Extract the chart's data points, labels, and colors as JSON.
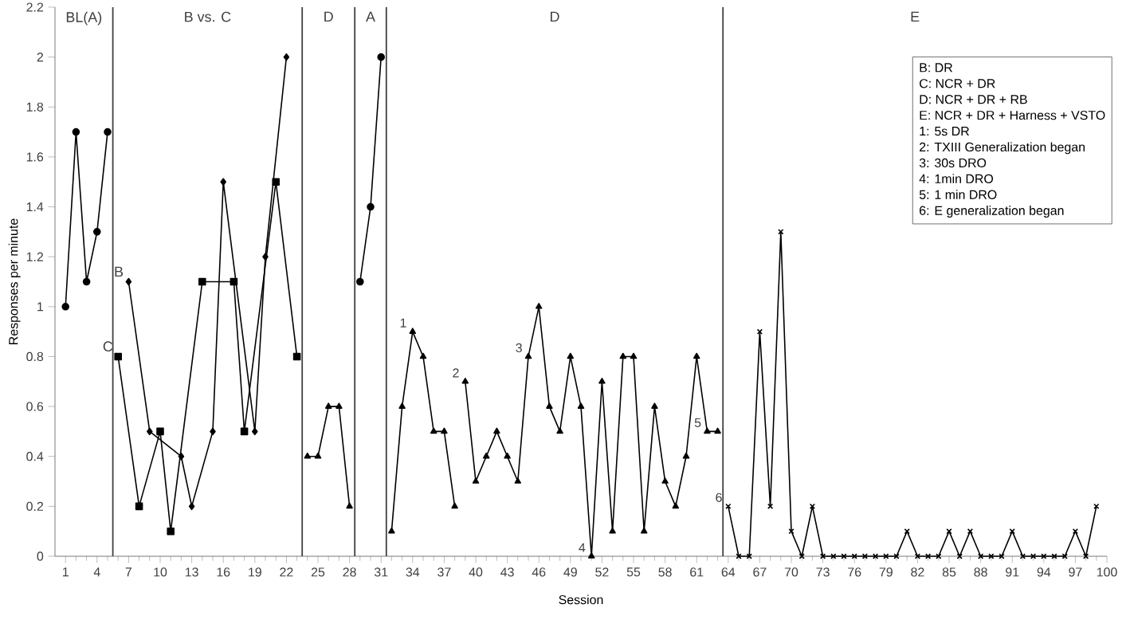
{
  "chart_data": {
    "type": "line",
    "xlabel": "Session",
    "ylabel": "Responses per minute",
    "xlim": [
      0,
      100
    ],
    "ylim": [
      0,
      2.2
    ],
    "xticks": [
      1,
      4,
      7,
      10,
      13,
      16,
      19,
      22,
      25,
      28,
      31,
      34,
      37,
      40,
      43,
      46,
      49,
      52,
      55,
      58,
      61,
      64,
      67,
      70,
      73,
      76,
      79,
      82,
      85,
      88,
      91,
      94,
      97,
      100
    ],
    "yticks": [
      0,
      0.2,
      0.4,
      0.6,
      0.8,
      1,
      1.2,
      1.4,
      1.6,
      1.8,
      2,
      2.2
    ],
    "grid": false,
    "series": [
      {
        "color": "#000000",
        "marker": "circle",
        "x": [
          1,
          2,
          3,
          4,
          5
        ],
        "values": [
          1.0,
          1.7,
          1.1,
          1.3,
          1.7
        ]
      },
      {
        "name": "B",
        "color": "#000000",
        "marker": "diamond",
        "x": [
          7,
          9,
          12,
          13,
          15,
          16,
          19,
          20,
          22
        ],
        "values": [
          1.1,
          0.5,
          0.4,
          0.2,
          0.5,
          1.5,
          0.5,
          1.2,
          2.0
        ]
      },
      {
        "name": "C",
        "color": "#000000",
        "marker": "square",
        "x": [
          6,
          8,
          10,
          11,
          14,
          17,
          18,
          21,
          23
        ],
        "values": [
          0.8,
          0.2,
          0.5,
          0.1,
          1.1,
          1.1,
          0.5,
          1.5,
          0.8
        ]
      },
      {
        "color": "#000000",
        "marker": "triangle",
        "x": [
          24,
          25,
          26,
          27,
          28
        ],
        "values": [
          0.4,
          0.4,
          0.6,
          0.6,
          0.2
        ]
      },
      {
        "color": "#000000",
        "marker": "circle",
        "x": [
          29,
          30,
          31
        ],
        "values": [
          1.1,
          1.4,
          2.0
        ]
      },
      {
        "color": "#000000",
        "marker": "triangle",
        "x": [
          32,
          33,
          34,
          35,
          36,
          37,
          38
        ],
        "values": [
          0.1,
          0.6,
          0.9,
          0.8,
          0.5,
          0.5,
          0.2
        ]
      },
      {
        "color": "#000000",
        "marker": "triangle",
        "x": [
          39,
          40,
          41,
          42,
          43,
          44,
          45,
          46,
          47,
          48,
          49,
          50,
          51,
          52,
          53,
          54,
          55,
          56,
          57,
          58,
          59,
          60,
          61,
          62,
          63
        ],
        "values": [
          0.7,
          0.3,
          0.4,
          0.5,
          0.4,
          0.3,
          0.8,
          1.0,
          0.6,
          0.5,
          0.8,
          0.6,
          0.0,
          0.7,
          0.1,
          0.8,
          0.8,
          0.1,
          0.6,
          0.3,
          0.2,
          0.4,
          0.8,
          0.5,
          0.5
        ]
      },
      {
        "color": "#000000",
        "marker": "cross",
        "x": [
          64,
          65,
          66,
          67,
          68,
          69,
          70,
          71,
          72,
          73,
          74,
          75,
          76,
          77,
          78,
          79,
          80,
          81,
          82,
          83,
          84,
          85,
          86,
          87,
          88,
          89,
          90,
          91,
          92,
          93,
          94,
          95,
          96,
          97,
          98,
          99
        ],
        "values": [
          0.2,
          0,
          0,
          0.9,
          0.2,
          1.3,
          0.1,
          0,
          0.2,
          0,
          0,
          0,
          0,
          0,
          0,
          0,
          0,
          0.1,
          0,
          0,
          0,
          0.1,
          0,
          0.1,
          0,
          0,
          0,
          0.1,
          0,
          0,
          0,
          0,
          0,
          0.1,
          0,
          0.2
        ]
      }
    ],
    "ref_lines": [
      {
        "axis": "x",
        "value": 5.5
      },
      {
        "axis": "x",
        "value": 23.5
      },
      {
        "axis": "x",
        "value": 28.5
      },
      {
        "axis": "x",
        "value": 31.5
      },
      {
        "axis": "x",
        "value": 63.5
      }
    ],
    "annotations": [
      "BL(A)",
      "B vs. C",
      "D",
      "A",
      "D",
      "E",
      "B: DR",
      "C: NCR + DR",
      "D: NCR + DR + RB",
      "E: NCR + DR + Harness + VSTO",
      "1: 5s DR",
      "2: TXIII Generalization began",
      "3: 30s DRO",
      "4: 1min DRO",
      "5: 1 min DRO",
      "6: E generalization began",
      {
        "text": "1",
        "x": 34,
        "y": 0.9
      },
      {
        "text": "2",
        "x": 39,
        "y": 0.7
      },
      {
        "text": "3",
        "x": 45,
        "y": 0.8
      },
      {
        "text": "4",
        "x": 51,
        "y": 0
      },
      {
        "text": "5",
        "x": 62,
        "y": 0.5
      },
      {
        "text": "6",
        "x": 64,
        "y": 0.2
      }
    ]
  }
}
